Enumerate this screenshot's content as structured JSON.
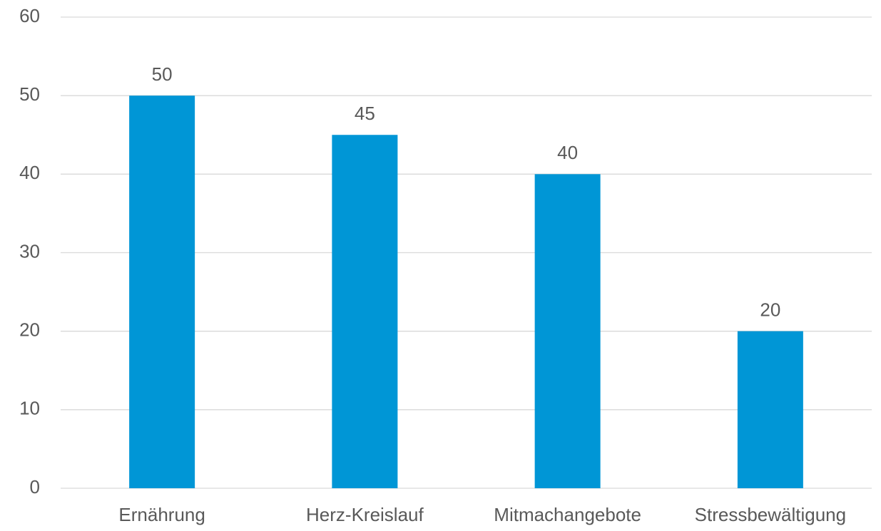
{
  "chart_data": {
    "type": "bar",
    "categories": [
      "Ernährung",
      "Herz-Kreislauf",
      "Mitmachangebote",
      "Stressbewältigung"
    ],
    "values": [
      50,
      45,
      40,
      20
    ],
    "color": "#0096d6",
    "ylim": [
      0,
      60
    ],
    "yticks": [
      0,
      10,
      20,
      30,
      40,
      50,
      60
    ],
    "grid": true
  }
}
